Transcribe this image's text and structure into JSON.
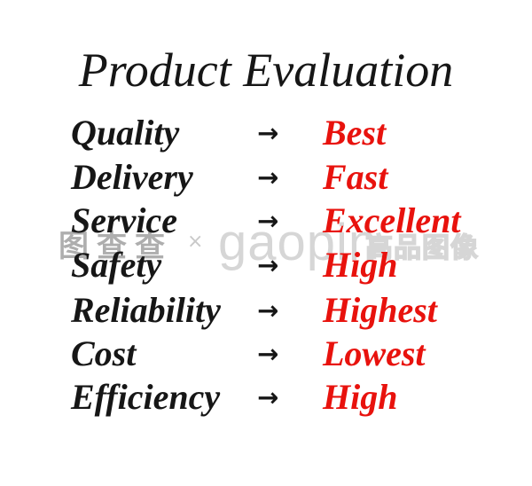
{
  "title": "Product Evaluation",
  "arrow_glyph": "→",
  "colors": {
    "text": "#161616",
    "value": "#e8120d",
    "wm_dark": "#a8a8a8",
    "wm_mid": "#c9c9c9",
    "wm_light": "#d6d6d6"
  },
  "rows": [
    {
      "label": "Quality",
      "value": "Best"
    },
    {
      "label": "Delivery",
      "value": "Fast"
    },
    {
      "label": "Service",
      "value": "Excellent"
    },
    {
      "label": "Safety",
      "value": "High"
    },
    {
      "label": "Reliability",
      "value": "Highest"
    },
    {
      "label": "Cost",
      "value": "Lowest"
    },
    {
      "label": "Efficiency",
      "value": "High"
    }
  ],
  "watermark": {
    "left_text": "图查查",
    "separator": "×",
    "brand": "gaopin",
    "brand_cn": "高品图像"
  }
}
